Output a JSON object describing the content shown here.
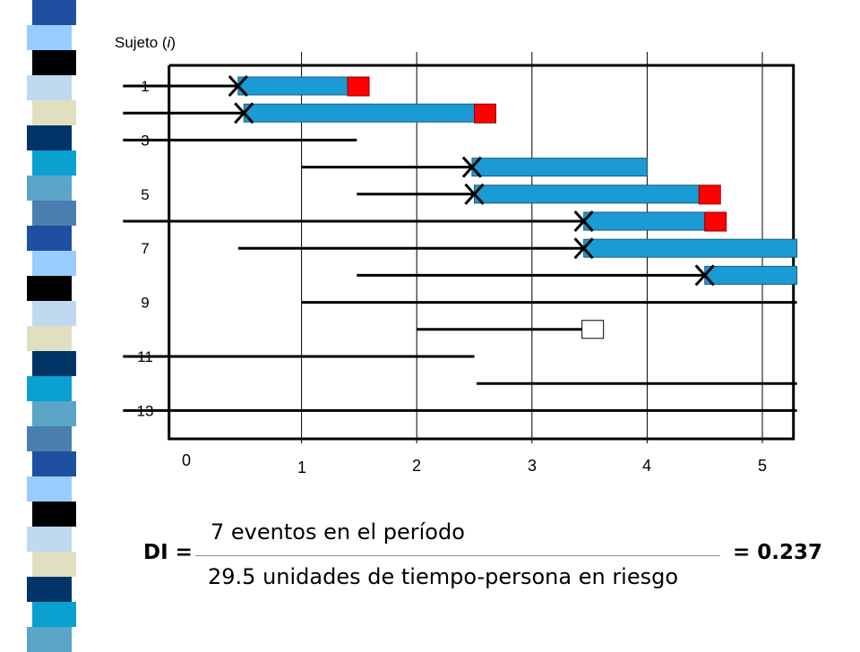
{
  "colors": {
    "person_time_bar": "#1a9bd3",
    "event_marker": "#ff0000",
    "censored_marker": "#ffffff",
    "stripe_palette": [
      "#003366",
      "#5aa5c8",
      "#1f4fa0",
      "#000000",
      "#e0e0c0",
      "#0aa0d0",
      "#4a7fb0",
      "#99ccff",
      "#c0d8f0"
    ]
  },
  "chart_data": {
    "type": "diagram",
    "y_axis_title": "Sujeto (",
    "y_axis_title_italic": "i",
    "y_axis_title_close": ")",
    "x_ticks": [
      "0",
      "1",
      "2",
      "3",
      "4",
      "5"
    ],
    "y_tick_labels": [
      "1",
      "3",
      "5",
      "7",
      "9",
      "11",
      "13"
    ],
    "grid_x": [
      1,
      2,
      3,
      4,
      5
    ],
    "subjects": [
      {
        "line_start": -0.55,
        "line_end": 0.45,
        "entry": 0.45,
        "end": 1.4,
        "outcome": "event"
      },
      {
        "line_start": -0.55,
        "line_end": 0.5,
        "entry": 0.5,
        "end": 2.5,
        "outcome": "event"
      },
      {
        "line_start": -0.55,
        "line_end": 1.48,
        "entry": null,
        "end": null,
        "outcome": "none"
      },
      {
        "line_start": 1.0,
        "line_end": 2.48,
        "entry": 2.48,
        "end": 4.0,
        "outcome": "none"
      },
      {
        "line_start": 1.48,
        "line_end": 2.5,
        "entry": 2.5,
        "end": 4.45,
        "outcome": "event"
      },
      {
        "line_start": -0.55,
        "line_end": 3.45,
        "entry": 3.45,
        "end": 4.5,
        "outcome": "event"
      },
      {
        "line_start": 0.45,
        "line_end": 3.45,
        "entry": 3.45,
        "end": 5.3,
        "outcome": "none"
      },
      {
        "line_start": 1.48,
        "line_end": 4.5,
        "entry": 4.5,
        "end": 5.3,
        "outcome": "none"
      },
      {
        "line_start": 1.0,
        "line_end": 5.3,
        "entry": null,
        "end": null,
        "outcome": "none"
      },
      {
        "line_start": 2.0,
        "line_end": 3.45,
        "entry": null,
        "end": null,
        "outcome": "censored"
      },
      {
        "line_start": -0.55,
        "line_end": 2.5,
        "entry": null,
        "end": null,
        "outcome": "none"
      },
      {
        "line_start": 2.52,
        "line_end": 5.3,
        "entry": null,
        "end": null,
        "outcome": "none"
      },
      {
        "line_start": -0.55,
        "line_end": 5.3,
        "entry": null,
        "end": null,
        "outcome": "none"
      }
    ]
  },
  "formula": {
    "label": "DI =",
    "numerator": "7 eventos en el período",
    "denominator": "29.5 unidades de tiempo-persona en riesgo",
    "result": "= 0.237"
  }
}
